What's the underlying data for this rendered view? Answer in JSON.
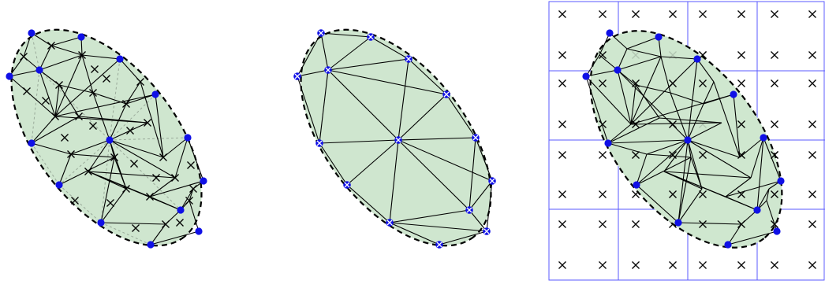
{
  "figure": {
    "panels": [
      {
        "id": "panel-1",
        "description_tokens": [
          "blue-vertex-dots",
          "black-x-markers",
          "triangle-mesh",
          "dashed-ellipse-boundary"
        ]
      },
      {
        "id": "panel-2",
        "description_tokens": [
          "blue-vertex-dots-with-x",
          "triangle-mesh",
          "dashed-ellipse-boundary"
        ]
      },
      {
        "id": "panel-3",
        "description_tokens": [
          "blue-grid",
          "black-x-markers",
          "blue-vertex-dots",
          "triangle-mesh",
          "dashed-ellipse-boundary"
        ]
      }
    ],
    "colors": {
      "fill": "#cfe6cf",
      "boundary": "#000000",
      "vertex": "#1010e6",
      "marker": "#000000",
      "grid": "#5a5aff",
      "guide": "#9aaa9a"
    },
    "icons": [
      "vertex-dot",
      "x-marker",
      "vertex-dot-with-x"
    ]
  }
}
